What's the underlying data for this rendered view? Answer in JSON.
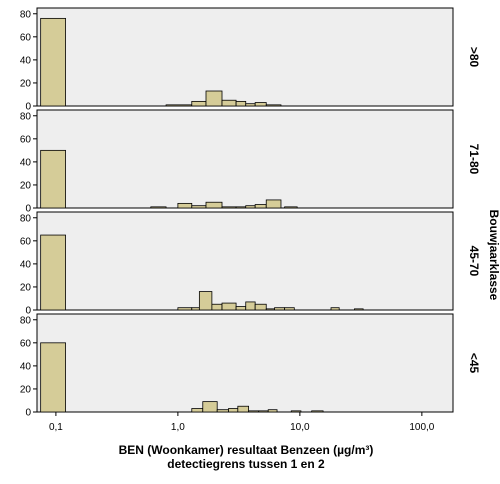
{
  "chart_data": {
    "type": "bar",
    "xlabel": "BEN (Woonkamer) resultaat Benzeen (µg/m³)",
    "xlabel_sub": "detectiegrens tussen 1 en 2",
    "facet_title": "Bouwjaarklasse",
    "x_scale": "log",
    "xlim": [
      0.07,
      180
    ],
    "ylim": [
      0,
      85
    ],
    "y_ticks": [
      0,
      20,
      40,
      60,
      80
    ],
    "x_ticks": [
      {
        "value": 0.1,
        "label": "0,1"
      },
      {
        "value": 1,
        "label": "1,0"
      },
      {
        "value": 10,
        "label": "10,0"
      },
      {
        "value": 100,
        "label": "100,0"
      }
    ],
    "bar_color": "#d5cc98",
    "panel_background": "#eeeeee",
    "panels": [
      {
        "label": ">80",
        "bars": [
          {
            "x0": 0.075,
            "x1": 0.12,
            "count": 76
          },
          {
            "x0": 0.8,
            "x1": 1.3,
            "count": 1
          },
          {
            "x0": 1.3,
            "x1": 1.7,
            "count": 4
          },
          {
            "x0": 1.7,
            "x1": 2.3,
            "count": 13
          },
          {
            "x0": 2.3,
            "x1": 3.0,
            "count": 5
          },
          {
            "x0": 3.0,
            "x1": 3.6,
            "count": 4
          },
          {
            "x0": 3.6,
            "x1": 4.3,
            "count": 2
          },
          {
            "x0": 4.3,
            "x1": 5.3,
            "count": 3
          },
          {
            "x0": 5.3,
            "x1": 7.0,
            "count": 1
          }
        ]
      },
      {
        "label": "71-80",
        "bars": [
          {
            "x0": 0.075,
            "x1": 0.12,
            "count": 50
          },
          {
            "x0": 0.6,
            "x1": 0.8,
            "count": 1
          },
          {
            "x0": 1.0,
            "x1": 1.3,
            "count": 4
          },
          {
            "x0": 1.3,
            "x1": 1.7,
            "count": 2
          },
          {
            "x0": 1.7,
            "x1": 2.3,
            "count": 5
          },
          {
            "x0": 2.3,
            "x1": 3.0,
            "count": 1
          },
          {
            "x0": 3.0,
            "x1": 3.6,
            "count": 1
          },
          {
            "x0": 3.6,
            "x1": 4.3,
            "count": 2
          },
          {
            "x0": 4.3,
            "x1": 5.3,
            "count": 3
          },
          {
            "x0": 5.3,
            "x1": 7.0,
            "count": 7
          },
          {
            "x0": 7.5,
            "x1": 9.5,
            "count": 1
          }
        ]
      },
      {
        "label": "45-70",
        "bars": [
          {
            "x0": 0.075,
            "x1": 0.12,
            "count": 65
          },
          {
            "x0": 1.0,
            "x1": 1.3,
            "count": 2
          },
          {
            "x0": 1.3,
            "x1": 1.5,
            "count": 2
          },
          {
            "x0": 1.5,
            "x1": 1.9,
            "count": 16
          },
          {
            "x0": 1.9,
            "x1": 2.3,
            "count": 5
          },
          {
            "x0": 2.3,
            "x1": 3.0,
            "count": 6
          },
          {
            "x0": 3.0,
            "x1": 3.6,
            "count": 3
          },
          {
            "x0": 3.6,
            "x1": 4.3,
            "count": 7
          },
          {
            "x0": 4.3,
            "x1": 5.3,
            "count": 5
          },
          {
            "x0": 5.3,
            "x1": 6.2,
            "count": 1
          },
          {
            "x0": 6.2,
            "x1": 7.5,
            "count": 2
          },
          {
            "x0": 7.5,
            "x1": 9.0,
            "count": 2
          },
          {
            "x0": 18,
            "x1": 21,
            "count": 2
          },
          {
            "x0": 28,
            "x1": 33,
            "count": 1
          }
        ]
      },
      {
        "label": "<45",
        "bars": [
          {
            "x0": 0.075,
            "x1": 0.12,
            "count": 60
          },
          {
            "x0": 1.3,
            "x1": 1.6,
            "count": 3
          },
          {
            "x0": 1.6,
            "x1": 2.1,
            "count": 9
          },
          {
            "x0": 2.1,
            "x1": 2.6,
            "count": 2
          },
          {
            "x0": 2.6,
            "x1": 3.1,
            "count": 3
          },
          {
            "x0": 3.1,
            "x1": 3.8,
            "count": 5
          },
          {
            "x0": 3.8,
            "x1": 4.6,
            "count": 1
          },
          {
            "x0": 4.6,
            "x1": 5.5,
            "count": 1
          },
          {
            "x0": 5.5,
            "x1": 6.5,
            "count": 2
          },
          {
            "x0": 8.5,
            "x1": 10.2,
            "count": 1
          },
          {
            "x0": 12.5,
            "x1": 15.5,
            "count": 1
          }
        ]
      }
    ]
  }
}
